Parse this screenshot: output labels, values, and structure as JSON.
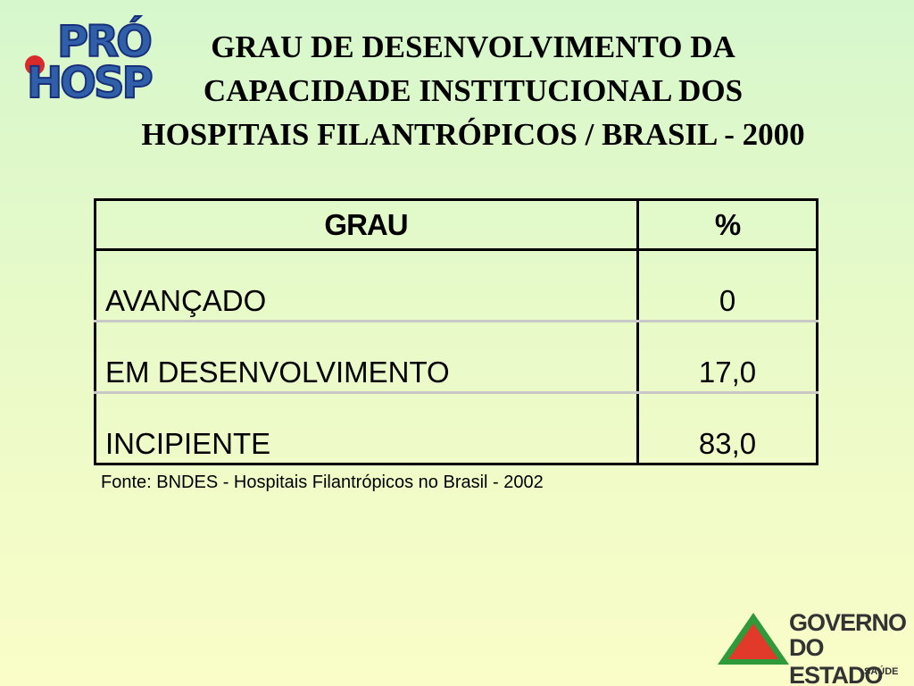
{
  "logo": {
    "line1": "PRÓ",
    "line2": "HOSP"
  },
  "header": {
    "title_lines": [
      "GRAU DE DESENVOLVIMENTO DA",
      "CAPACIDADE INSTITUCIONAL DOS",
      "HOSPITAIS FILANTRÓPICOS / BRASIL - 2000"
    ]
  },
  "table": {
    "columns": [
      "GRAU",
      "%"
    ],
    "rows": [
      [
        "AVANÇADO",
        "0"
      ],
      [
        "EM DESENVOLVIMENTO",
        "17,0"
      ],
      [
        "INCIPIENTE",
        "83,0"
      ]
    ]
  },
  "source": "Fonte: BNDES - Hospitais Filantrópicos no Brasil - 2002",
  "footer_logo": {
    "line1": "GOVERNO",
    "line2": "DO ESTADO",
    "line3": "SAÚDE"
  }
}
